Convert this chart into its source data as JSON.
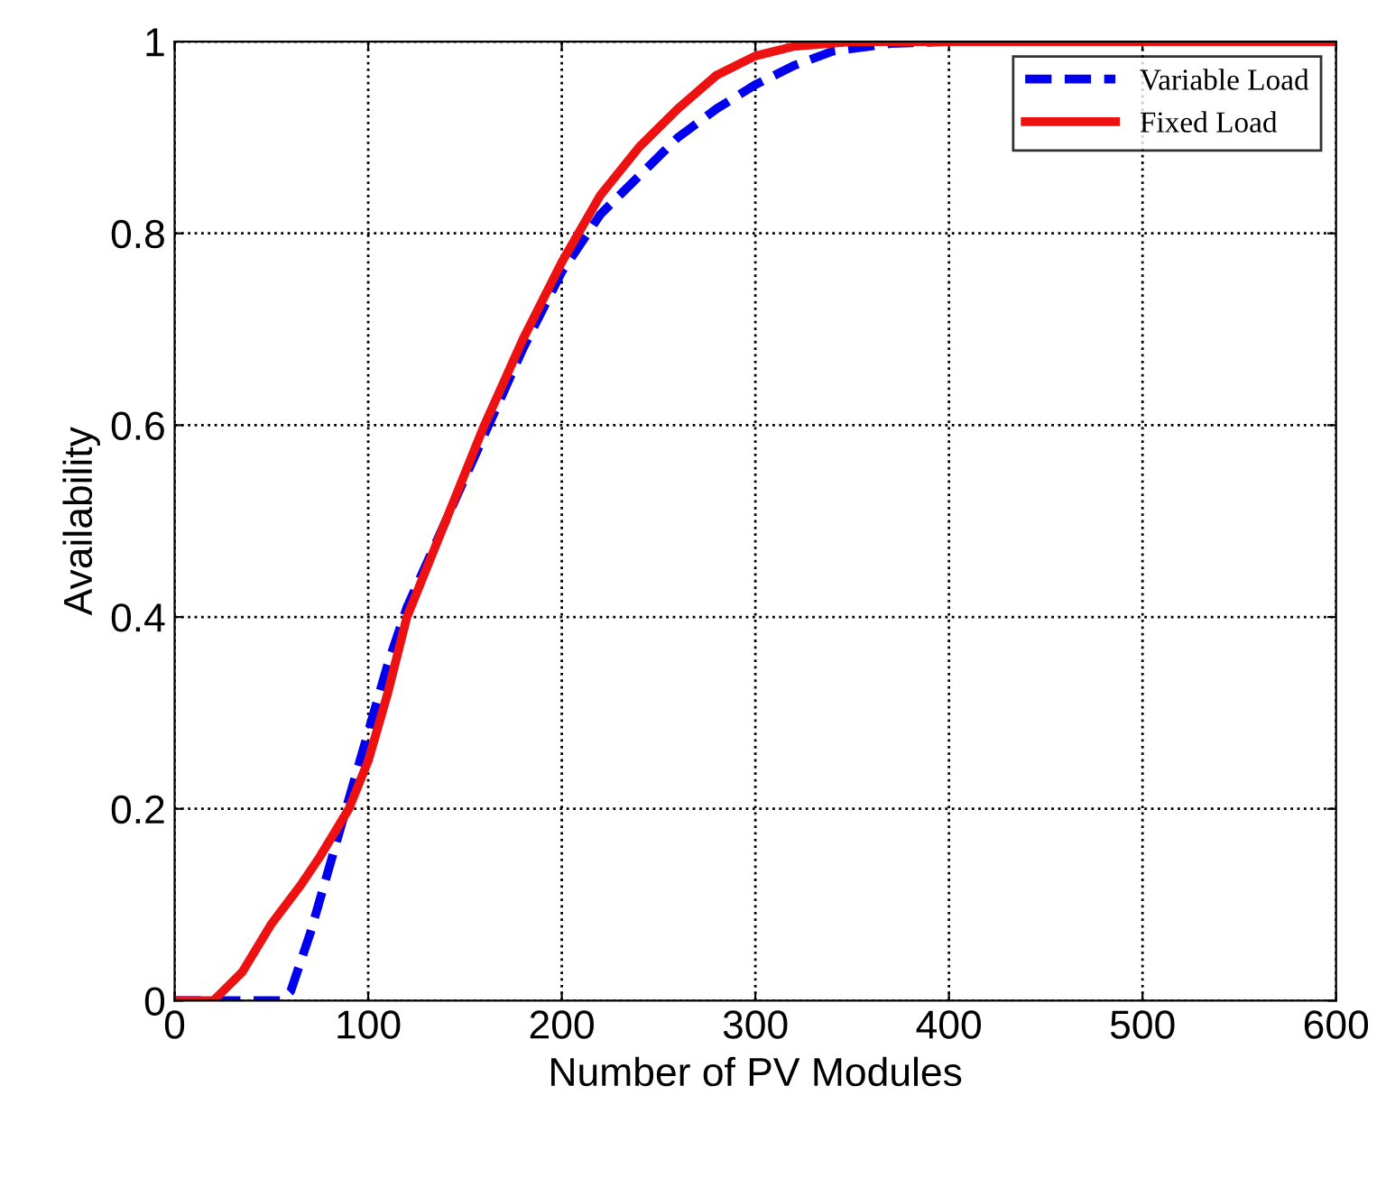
{
  "chart_data": {
    "type": "line",
    "xlabel": "Number of PV Modules",
    "ylabel": "Availability",
    "xlim": [
      0,
      600
    ],
    "ylim": [
      0,
      1
    ],
    "xticks": [
      0,
      100,
      200,
      300,
      400,
      500,
      600
    ],
    "yticks": [
      0,
      0.2,
      0.4,
      0.6,
      0.8,
      1
    ],
    "grid": true,
    "legend": "top right",
    "series": [
      {
        "name": "Variable Load",
        "color": "#0000ee",
        "line_style": "dashed",
        "x": [
          0,
          55,
          60,
          70,
          80,
          90,
          100,
          110,
          120,
          140,
          160,
          180,
          200,
          220,
          240,
          260,
          280,
          300,
          320,
          340,
          370,
          400
        ],
        "values": [
          0,
          0,
          0.01,
          0.07,
          0.14,
          0.21,
          0.28,
          0.35,
          0.41,
          0.5,
          0.59,
          0.68,
          0.76,
          0.82,
          0.86,
          0.9,
          0.93,
          0.955,
          0.975,
          0.99,
          0.998,
          1
        ]
      },
      {
        "name": "Fixed Load",
        "color": "#ee1111",
        "line_style": "solid",
        "x": [
          0,
          20,
          35,
          50,
          65,
          75,
          90,
          100,
          110,
          120,
          140,
          160,
          180,
          200,
          220,
          240,
          260,
          280,
          300,
          320,
          350,
          600
        ],
        "values": [
          0,
          0,
          0.03,
          0.08,
          0.12,
          0.15,
          0.2,
          0.25,
          0.32,
          0.4,
          0.5,
          0.6,
          0.69,
          0.77,
          0.84,
          0.89,
          0.93,
          0.965,
          0.985,
          0.995,
          1,
          1
        ]
      }
    ]
  }
}
